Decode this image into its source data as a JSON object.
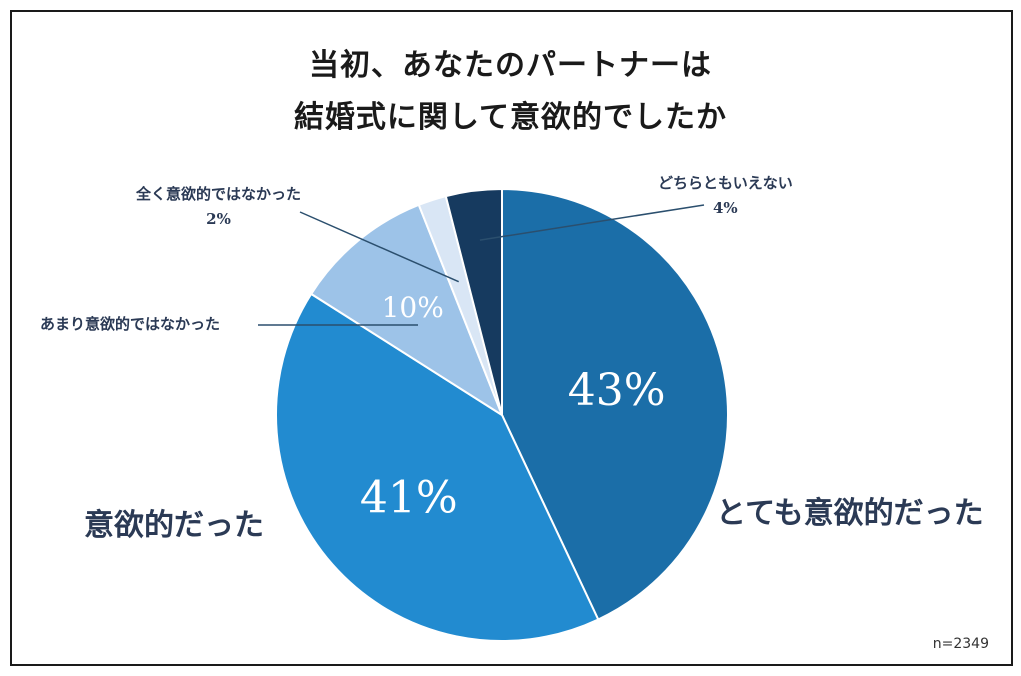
{
  "title_line1": "当初、あなたのパートナーは",
  "title_line2": "結婚式に関して意欲的でしたか",
  "sample_size": "n=2349",
  "labels": {
    "very": "とても意欲的だった",
    "motivated": "意欲的だった",
    "not_very": "あまり意欲的ではなかった",
    "not_at_all": "全く意欲的ではなかった",
    "neutral": "どちらともいえない"
  },
  "pct_text": {
    "very": "43%",
    "motivated": "41%",
    "not_very": "10%",
    "not_at_all": "2%",
    "neutral": "4%"
  },
  "chart_data": {
    "type": "pie",
    "title": "当初、あなたのパートナーは結婚式に関して意欲的でしたか",
    "start_angle": "12 o'clock",
    "direction": "clockwise",
    "categories": [
      "とても意欲的だった",
      "意欲的だった",
      "あまり意欲的ではなかった",
      "全く意欲的ではなかった",
      "どちらともいえない"
    ],
    "values": [
      43,
      41,
      10,
      2,
      4
    ],
    "colors": [
      "#1b6ea8",
      "#228bd0",
      "#9dc3e8",
      "#d9e6f5",
      "#163a5f"
    ],
    "note": "n=2349"
  }
}
